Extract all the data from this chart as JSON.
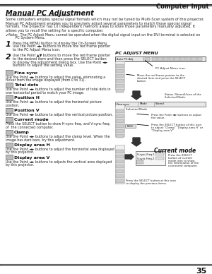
{
  "page_number": "35",
  "header_text": "Computer Input",
  "title": "Manual PC Adjustment",
  "bg_color": "#ffffff",
  "intro_text_lines": [
    "Some computers employ special signal formats which may not be tuned by Multi-Scan system of this projector.",
    "Manual PC Adjustment enables you to precisely adjust several parameters to match those special signal",
    "formats. The projector has 10 independent memory areas to store those parameters manually adjusted. It",
    "allows you to recall the setting for a specific computer."
  ],
  "note_line1": "✔Note:  The PC Adjust Menu cannot be operated when the digital signal input on the DVI terminal is selected on",
  "note_line2": "         PC System Menu.",
  "step1_lines": [
    "Press the MENU button to display the On-Screen Menu.",
    "Use the Point ◄► buttons to move the red frame pointer",
    "to the PC Adjust Menu icon."
  ],
  "step2_lines": [
    "Use the Point ▲▼ buttons to move the red frame pointer",
    "to the desired item and then press the SELECT button",
    "to display the adjustment dialog box. Use the Point ◄►",
    "buttons to adjust the setting value."
  ],
  "items": [
    {
      "label": "Fine sync",
      "desc_lines": [
        "Use the Point ◄► buttons to adjust the value, eliminating a",
        "flicker from the image displayed (from 0 to 31)."
      ]
    },
    {
      "label": "Total dots",
      "desc_lines": [
        "Use the Point ◄► buttons to adjust the number of total dots in",
        "one horizontal period to match your PC image."
      ]
    },
    {
      "label": "Position H",
      "desc_lines": [
        "Use the Point ◄► buttons to adjust the horizontal picture",
        "position."
      ]
    },
    {
      "label": "Position V",
      "desc_lines": [
        "Use the Point ◄► buttons to adjust the vertical picture position."
      ]
    },
    {
      "label": "Current mode",
      "desc_lines": [
        "Press the SELECT button to show H-sync freq. and V-sync freq.",
        "of  the connected computer."
      ]
    },
    {
      "label": "Clamp",
      "desc_lines": [
        "Use the Point ◄► buttons to adjust the clamp level. When the",
        "image has dark bars, try this adjustment."
      ]
    },
    {
      "label": "Display area H",
      "desc_lines": [
        "Use the Point ◄► buttons to adjust the horizontal area displayed",
        "by this projector."
      ]
    },
    {
      "label": "Display area V",
      "desc_lines": [
        "Use the Point ◄► buttons to adjusts the vertical area displayed",
        "by this projector."
      ]
    }
  ],
  "rp_title": "PC ADJUST MENU",
  "rp_menu_bar": "Auto PC Adj.",
  "rp_label1": "PC Adjust Menu icon.",
  "rp_label2_lines": [
    "Move the red frame pointer to the",
    "desired item and press the SELECT",
    "button."
  ],
  "rp_label3_lines": [
    "Status (Stored)/icon of the",
    "Selected Mode."
  ],
  "rp_label4": "Selected Mode",
  "rp_label5_lines": [
    "Press the Point ◄► buttons to adjust",
    "the value."
  ],
  "rp_label6_lines": [
    "Press the SELECT button at this icon",
    "to adjust \"Clamp\" \"Display area H\" or",
    "\"Display area V\""
  ],
  "rp_cm_title": "Current mode",
  "rp_cm_freq1": "H-sync Freq.1",
  "rp_cm_freq2": "V-sync Freq.2",
  "rp_cm_label_lines": [
    "Press the SELECT",
    "button at Current",
    "mode icon to show",
    "the information of the",
    "connected computer."
  ],
  "rp_prev_lines": [
    "Press the SELECT button at this icon",
    "to display the previous items."
  ]
}
